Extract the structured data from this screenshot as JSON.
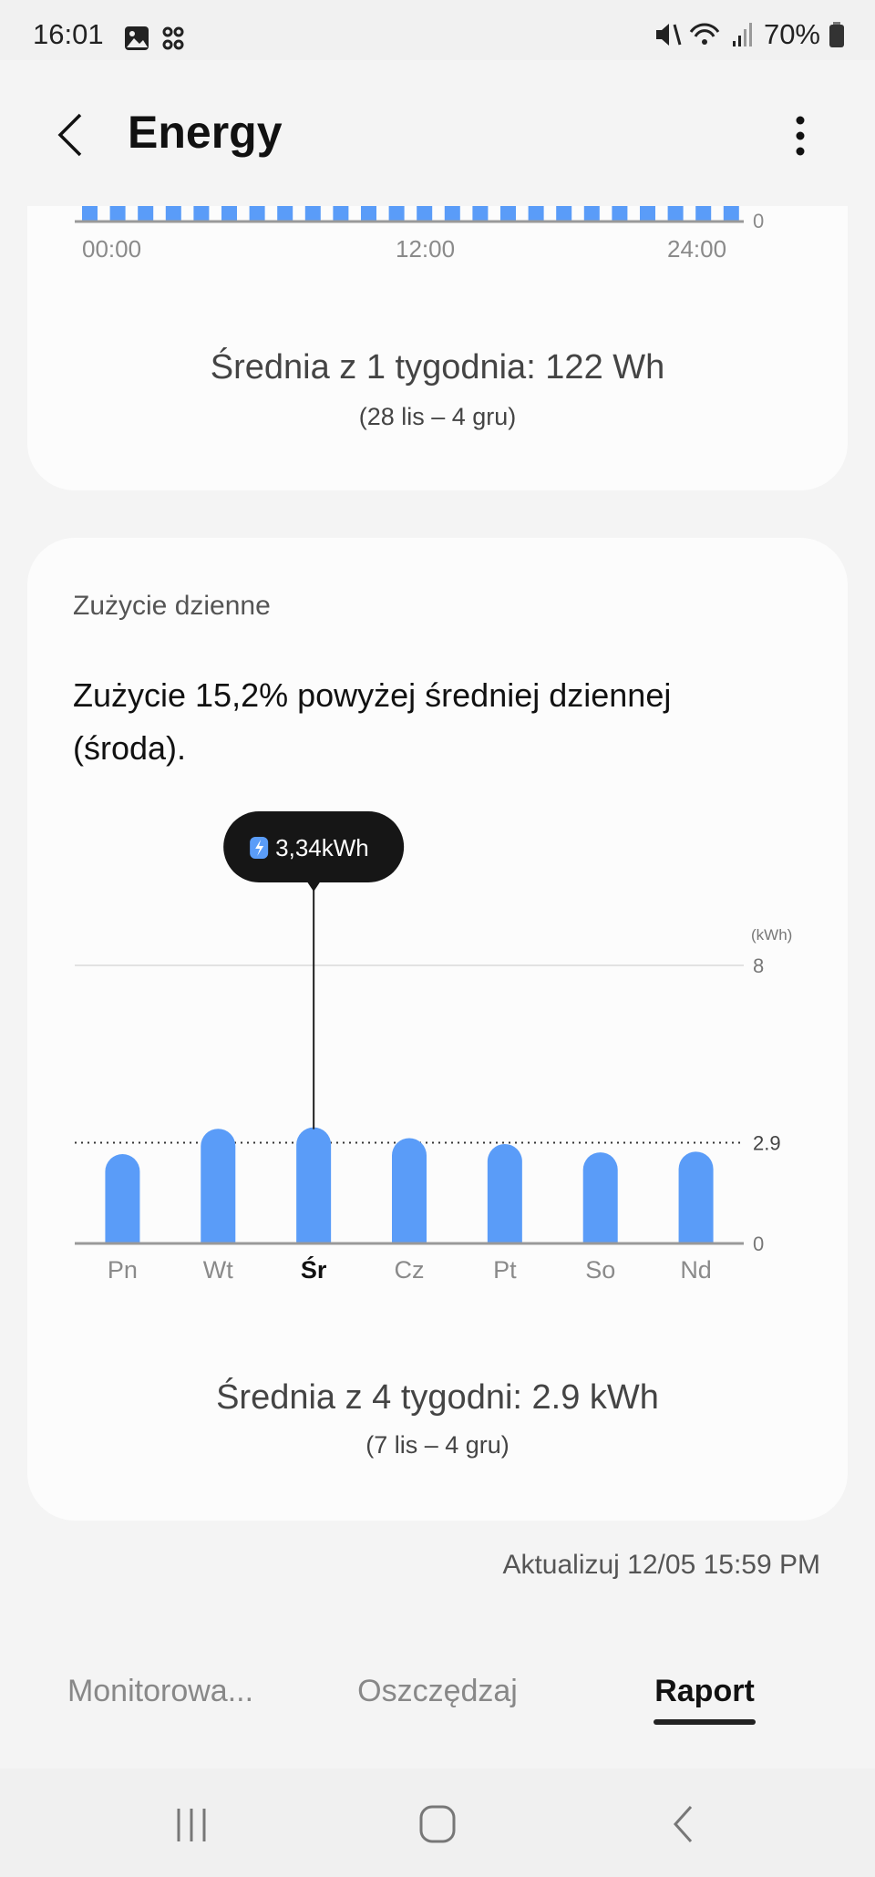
{
  "status_bar": {
    "time": "16:01",
    "battery": "70%",
    "icons": [
      "gallery-icon",
      "network-icon",
      "mute-icon",
      "wifi-icon",
      "signal-icon",
      "battery-icon"
    ]
  },
  "header": {
    "title": "Energy",
    "back_icon": "chevron-left-icon",
    "menu_icon": "more-vertical-icon"
  },
  "hourly_card": {
    "x_ticks": [
      "00:00",
      "12:00",
      "24:00"
    ],
    "y_tick": "0",
    "average": "Średnia z 1 tygodnia: 122 Wh",
    "range": "(28 lis – 4 gru)"
  },
  "daily_card": {
    "title": "Zużycie dzienne",
    "headline": "Zużycie 15,2% powyżej średniej dziennej (środa).",
    "average": "Średnia z 4 tygodni: 2.9 kWh",
    "range": "(7 lis – 4 gru)",
    "tooltip": "3,34kWh"
  },
  "chart_data": {
    "type": "bar",
    "categories": [
      "Pn",
      "Wt",
      "Śr",
      "Cz",
      "Pt",
      "So",
      "Nd"
    ],
    "values": [
      2.57,
      3.3,
      3.34,
      3.03,
      2.86,
      2.62,
      2.64
    ],
    "selected": "Śr",
    "ylabel": "(kWh)",
    "y_ticks": [
      "8",
      "2.9",
      "0"
    ],
    "ylim": [
      0,
      8
    ],
    "average_line": 2.9,
    "bar_color": "#5a9cf8"
  },
  "updated": "Aktualizuj 12/05 15:59 PM",
  "tabs": [
    {
      "label": "Monitorowa...",
      "active": false
    },
    {
      "label": "Oszczędzaj",
      "active": false
    },
    {
      "label": "Raport",
      "active": true
    }
  ],
  "nav_bar": {
    "icons": [
      "recent-apps-icon",
      "home-icon",
      "back-icon"
    ]
  }
}
